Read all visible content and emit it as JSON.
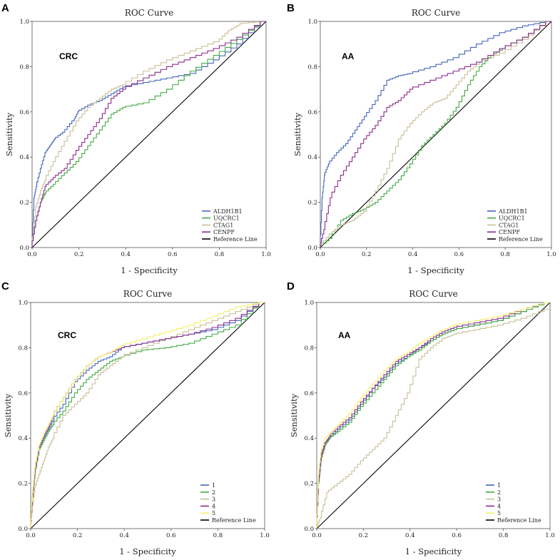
{
  "chart_data": [
    {
      "panel": "A",
      "type": "line",
      "title": "ROC Curve",
      "xlabel": "1 - Specificity",
      "ylabel": "Sensitivity",
      "annotation": "CRC",
      "xlim": [
        0,
        1
      ],
      "ylim": [
        0,
        1
      ],
      "xticks": [
        "0.0",
        "0.2",
        "0.4",
        "0.6",
        "0.8",
        "1.0"
      ],
      "yticks": [
        "0.0",
        "0.2",
        "0.4",
        "0.6",
        "0.8",
        "1.0"
      ],
      "grid": false,
      "legend_position": "bottom-right",
      "series": [
        {
          "name": "ALDH1B1",
          "color": "#4466bb",
          "x": [
            0,
            0.01,
            0.02,
            0.04,
            0.06,
            0.08,
            0.1,
            0.14,
            0.18,
            0.2,
            0.25,
            0.3,
            0.35,
            0.4,
            0.5,
            0.6,
            0.7,
            0.8,
            0.9,
            1.0
          ],
          "y": [
            0,
            0.22,
            0.27,
            0.35,
            0.42,
            0.45,
            0.48,
            0.51,
            0.56,
            0.6,
            0.63,
            0.65,
            0.68,
            0.71,
            0.73,
            0.75,
            0.77,
            0.83,
            0.9,
            1.0
          ]
        },
        {
          "name": "UQCRC1",
          "color": "#44aa44",
          "x": [
            0,
            0.02,
            0.04,
            0.06,
            0.1,
            0.15,
            0.2,
            0.25,
            0.3,
            0.35,
            0.4,
            0.5,
            0.6,
            0.7,
            0.8,
            0.9,
            1.0
          ],
          "y": [
            0,
            0.12,
            0.2,
            0.24,
            0.28,
            0.33,
            0.38,
            0.45,
            0.52,
            0.59,
            0.62,
            0.64,
            0.7,
            0.78,
            0.85,
            0.92,
            1.0
          ]
        },
        {
          "name": "CTAG1",
          "color": "#c8bf96",
          "x": [
            0,
            0.02,
            0.04,
            0.06,
            0.1,
            0.15,
            0.2,
            0.25,
            0.3,
            0.35,
            0.4,
            0.5,
            0.6,
            0.7,
            0.8,
            0.85,
            0.9,
            1.0
          ],
          "y": [
            0,
            0.18,
            0.25,
            0.3,
            0.38,
            0.47,
            0.56,
            0.62,
            0.66,
            0.7,
            0.72,
            0.78,
            0.83,
            0.87,
            0.91,
            0.96,
            0.99,
            1.0
          ]
        },
        {
          "name": "CENPF",
          "color": "#8a2e8e",
          "x": [
            0,
            0.02,
            0.04,
            0.06,
            0.1,
            0.15,
            0.2,
            0.25,
            0.3,
            0.35,
            0.4,
            0.5,
            0.6,
            0.7,
            0.8,
            0.9,
            1.0
          ],
          "y": [
            0,
            0.12,
            0.2,
            0.27,
            0.31,
            0.35,
            0.43,
            0.5,
            0.57,
            0.66,
            0.7,
            0.75,
            0.8,
            0.84,
            0.88,
            0.93,
            1.0
          ]
        },
        {
          "name": "Reference Line",
          "color": "#000000",
          "x": [
            0,
            1
          ],
          "y": [
            0,
            1
          ]
        }
      ]
    },
    {
      "panel": "B",
      "type": "line",
      "title": "ROC Curve",
      "xlabel": "1 - Specificity",
      "ylabel": "Sensitivity",
      "annotation": "AA",
      "xlim": [
        0,
        1
      ],
      "ylim": [
        0,
        1
      ],
      "xticks": [
        "0.0",
        "0.2",
        "0.4",
        "0.6",
        "0.8",
        "1.0"
      ],
      "yticks": [
        "0.0",
        "0.2",
        "0.4",
        "0.6",
        "0.8",
        "1.0"
      ],
      "grid": false,
      "legend_position": "bottom-right",
      "series": [
        {
          "name": "ALDH1B1",
          "color": "#4466bb",
          "x": [
            0,
            0.01,
            0.02,
            0.04,
            0.08,
            0.12,
            0.16,
            0.2,
            0.25,
            0.3,
            0.35,
            0.4,
            0.5,
            0.6,
            0.7,
            0.8,
            0.9,
            1.0
          ],
          "y": [
            0,
            0.22,
            0.32,
            0.37,
            0.42,
            0.46,
            0.52,
            0.58,
            0.65,
            0.74,
            0.76,
            0.77,
            0.8,
            0.84,
            0.9,
            0.95,
            0.98,
            1.0
          ]
        },
        {
          "name": "UQCRC1",
          "color": "#44aa44",
          "x": [
            0,
            0.05,
            0.1,
            0.15,
            0.2,
            0.25,
            0.3,
            0.35,
            0.4,
            0.45,
            0.5,
            0.55,
            0.6,
            0.65,
            0.7,
            0.75,
            0.8,
            0.9,
            1.0
          ],
          "y": [
            0,
            0.04,
            0.12,
            0.15,
            0.17,
            0.2,
            0.25,
            0.3,
            0.37,
            0.45,
            0.5,
            0.55,
            0.62,
            0.72,
            0.8,
            0.85,
            0.88,
            0.93,
            1.0
          ]
        },
        {
          "name": "CTAG1",
          "color": "#c8bf96",
          "x": [
            0,
            0.05,
            0.1,
            0.15,
            0.2,
            0.25,
            0.3,
            0.35,
            0.4,
            0.45,
            0.5,
            0.55,
            0.6,
            0.65,
            0.7,
            0.8,
            0.9,
            1.0
          ],
          "y": [
            0,
            0.06,
            0.1,
            0.12,
            0.16,
            0.25,
            0.35,
            0.48,
            0.55,
            0.6,
            0.64,
            0.66,
            0.72,
            0.78,
            0.82,
            0.86,
            0.92,
            1.0
          ]
        },
        {
          "name": "CENPF",
          "color": "#8a2e8e",
          "x": [
            0,
            0.02,
            0.05,
            0.1,
            0.15,
            0.2,
            0.25,
            0.3,
            0.35,
            0.4,
            0.5,
            0.6,
            0.7,
            0.8,
            0.9,
            1.0
          ],
          "y": [
            0,
            0.08,
            0.22,
            0.32,
            0.4,
            0.48,
            0.54,
            0.62,
            0.65,
            0.7,
            0.74,
            0.78,
            0.82,
            0.88,
            0.93,
            1.0
          ]
        },
        {
          "name": "Reference Line",
          "color": "#000000",
          "x": [
            0,
            1
          ],
          "y": [
            0,
            1
          ]
        }
      ]
    },
    {
      "panel": "C",
      "type": "line",
      "title": "ROC Curve",
      "xlabel": "1 - Specificity",
      "ylabel": "Sensitivity",
      "annotation": "CRC",
      "xlim": [
        0,
        1
      ],
      "ylim": [
        0,
        1
      ],
      "xticks": [
        "0.0",
        "0.2",
        "0.4",
        "0.6",
        "0.8",
        "1.0"
      ],
      "yticks": [
        "0.0",
        "0.2",
        "0.4",
        "0.6",
        "0.8",
        "1.0"
      ],
      "grid": false,
      "legend_position": "bottom-right",
      "series": [
        {
          "name": "1",
          "color": "#4466bb",
          "x": [
            0,
            0.01,
            0.02,
            0.04,
            0.06,
            0.08,
            0.1,
            0.15,
            0.2,
            0.25,
            0.3,
            0.35,
            0.4,
            0.5,
            0.6,
            0.7,
            0.8,
            0.9,
            1.0
          ],
          "y": [
            0,
            0.15,
            0.25,
            0.36,
            0.4,
            0.44,
            0.48,
            0.55,
            0.65,
            0.7,
            0.74,
            0.76,
            0.8,
            0.82,
            0.84,
            0.86,
            0.88,
            0.92,
            1.0
          ]
        },
        {
          "name": "2",
          "color": "#44aa44",
          "x": [
            0,
            0.01,
            0.02,
            0.04,
            0.06,
            0.08,
            0.1,
            0.15,
            0.2,
            0.25,
            0.3,
            0.35,
            0.4,
            0.5,
            0.6,
            0.7,
            0.8,
            0.9,
            1.0
          ],
          "y": [
            0,
            0.14,
            0.24,
            0.35,
            0.39,
            0.43,
            0.46,
            0.52,
            0.6,
            0.66,
            0.7,
            0.74,
            0.76,
            0.79,
            0.8,
            0.82,
            0.86,
            0.9,
            1.0
          ]
        },
        {
          "name": "3",
          "color": "#c8bf96",
          "x": [
            0,
            0.01,
            0.02,
            0.04,
            0.06,
            0.08,
            0.1,
            0.15,
            0.2,
            0.25,
            0.3,
            0.35,
            0.4,
            0.5,
            0.6,
            0.7,
            0.8,
            0.9,
            1.0
          ],
          "y": [
            0,
            0.1,
            0.18,
            0.24,
            0.3,
            0.36,
            0.4,
            0.5,
            0.55,
            0.6,
            0.68,
            0.72,
            0.76,
            0.8,
            0.84,
            0.88,
            0.92,
            0.96,
            1.0
          ]
        },
        {
          "name": "4",
          "color": "#8a2e8e",
          "x": [
            0,
            0.01,
            0.02,
            0.04,
            0.06,
            0.08,
            0.1,
            0.15,
            0.2,
            0.25,
            0.3,
            0.35,
            0.4,
            0.5,
            0.6,
            0.7,
            0.8,
            0.9,
            1.0
          ],
          "y": [
            0,
            0.14,
            0.25,
            0.36,
            0.41,
            0.45,
            0.5,
            0.58,
            0.66,
            0.72,
            0.76,
            0.78,
            0.8,
            0.82,
            0.84,
            0.86,
            0.89,
            0.93,
            1.0
          ]
        },
        {
          "name": "5",
          "color": "#f3f06c",
          "x": [
            0,
            0.01,
            0.02,
            0.04,
            0.06,
            0.08,
            0.1,
            0.15,
            0.2,
            0.25,
            0.3,
            0.35,
            0.4,
            0.5,
            0.6,
            0.7,
            0.8,
            0.9,
            1.0
          ],
          "y": [
            0,
            0.16,
            0.27,
            0.37,
            0.42,
            0.46,
            0.5,
            0.58,
            0.66,
            0.72,
            0.76,
            0.78,
            0.81,
            0.84,
            0.87,
            0.9,
            0.94,
            0.98,
            1.0
          ]
        },
        {
          "name": "Reference Line",
          "color": "#000000",
          "x": [
            0,
            1
          ],
          "y": [
            0,
            1
          ]
        }
      ]
    },
    {
      "panel": "D",
      "type": "line",
      "title": "ROC Curve",
      "xlabel": "1 - Specificity",
      "ylabel": "Sensitivity",
      "annotation": "AA",
      "xlim": [
        0,
        1
      ],
      "ylim": [
        0,
        1
      ],
      "xticks": [
        "0.0",
        "0.2",
        "0.4",
        "0.6",
        "0.8",
        "1.0"
      ],
      "yticks": [
        "0.0",
        "0.2",
        "0.4",
        "0.6",
        "0.8",
        "1.0"
      ],
      "grid": false,
      "legend_position": "bottom-right",
      "series": [
        {
          "name": "1",
          "color": "#4466bb",
          "x": [
            0,
            0.01,
            0.02,
            0.04,
            0.06,
            0.1,
            0.15,
            0.2,
            0.25,
            0.3,
            0.35,
            0.4,
            0.45,
            0.5,
            0.55,
            0.6,
            0.7,
            0.8,
            0.9,
            1.0
          ],
          "y": [
            0,
            0.22,
            0.32,
            0.38,
            0.4,
            0.44,
            0.48,
            0.55,
            0.62,
            0.67,
            0.73,
            0.76,
            0.8,
            0.83,
            0.86,
            0.88,
            0.9,
            0.92,
            0.96,
            1.0
          ]
        },
        {
          "name": "2",
          "color": "#44aa44",
          "x": [
            0,
            0.01,
            0.02,
            0.04,
            0.06,
            0.1,
            0.15,
            0.2,
            0.25,
            0.3,
            0.35,
            0.4,
            0.45,
            0.5,
            0.55,
            0.6,
            0.7,
            0.8,
            0.9,
            1.0
          ],
          "y": [
            0,
            0.2,
            0.3,
            0.37,
            0.4,
            0.43,
            0.47,
            0.54,
            0.6,
            0.66,
            0.72,
            0.76,
            0.79,
            0.83,
            0.86,
            0.88,
            0.9,
            0.92,
            0.96,
            1.0
          ]
        },
        {
          "name": "3",
          "color": "#c8bf96",
          "x": [
            0,
            0.02,
            0.05,
            0.1,
            0.15,
            0.2,
            0.25,
            0.3,
            0.35,
            0.4,
            0.45,
            0.5,
            0.55,
            0.6,
            0.7,
            0.8,
            0.9,
            1.0
          ],
          "y": [
            0,
            0.05,
            0.16,
            0.2,
            0.24,
            0.3,
            0.35,
            0.4,
            0.5,
            0.6,
            0.75,
            0.8,
            0.84,
            0.86,
            0.88,
            0.9,
            0.93,
            0.97
          ]
        },
        {
          "name": "4",
          "color": "#8a2e8e",
          "x": [
            0,
            0.01,
            0.02,
            0.04,
            0.06,
            0.1,
            0.15,
            0.2,
            0.25,
            0.3,
            0.35,
            0.4,
            0.45,
            0.5,
            0.55,
            0.6,
            0.7,
            0.8,
            0.9,
            1.0
          ],
          "y": [
            0,
            0.21,
            0.31,
            0.38,
            0.41,
            0.45,
            0.49,
            0.56,
            0.62,
            0.68,
            0.74,
            0.77,
            0.8,
            0.84,
            0.87,
            0.89,
            0.91,
            0.93,
            0.97,
            1.0
          ]
        },
        {
          "name": "5",
          "color": "#f3f06c",
          "x": [
            0,
            0.01,
            0.02,
            0.04,
            0.06,
            0.1,
            0.15,
            0.2,
            0.25,
            0.3,
            0.35,
            0.4,
            0.45,
            0.5,
            0.55,
            0.6,
            0.7,
            0.8,
            0.9,
            1.0
          ],
          "y": [
            0,
            0.24,
            0.34,
            0.4,
            0.42,
            0.46,
            0.51,
            0.58,
            0.64,
            0.7,
            0.75,
            0.78,
            0.82,
            0.85,
            0.88,
            0.9,
            0.92,
            0.94,
            0.97,
            1.0
          ]
        },
        {
          "name": "Reference Line",
          "color": "#000000",
          "x": [
            0,
            1
          ],
          "y": [
            0,
            1
          ]
        }
      ]
    }
  ]
}
